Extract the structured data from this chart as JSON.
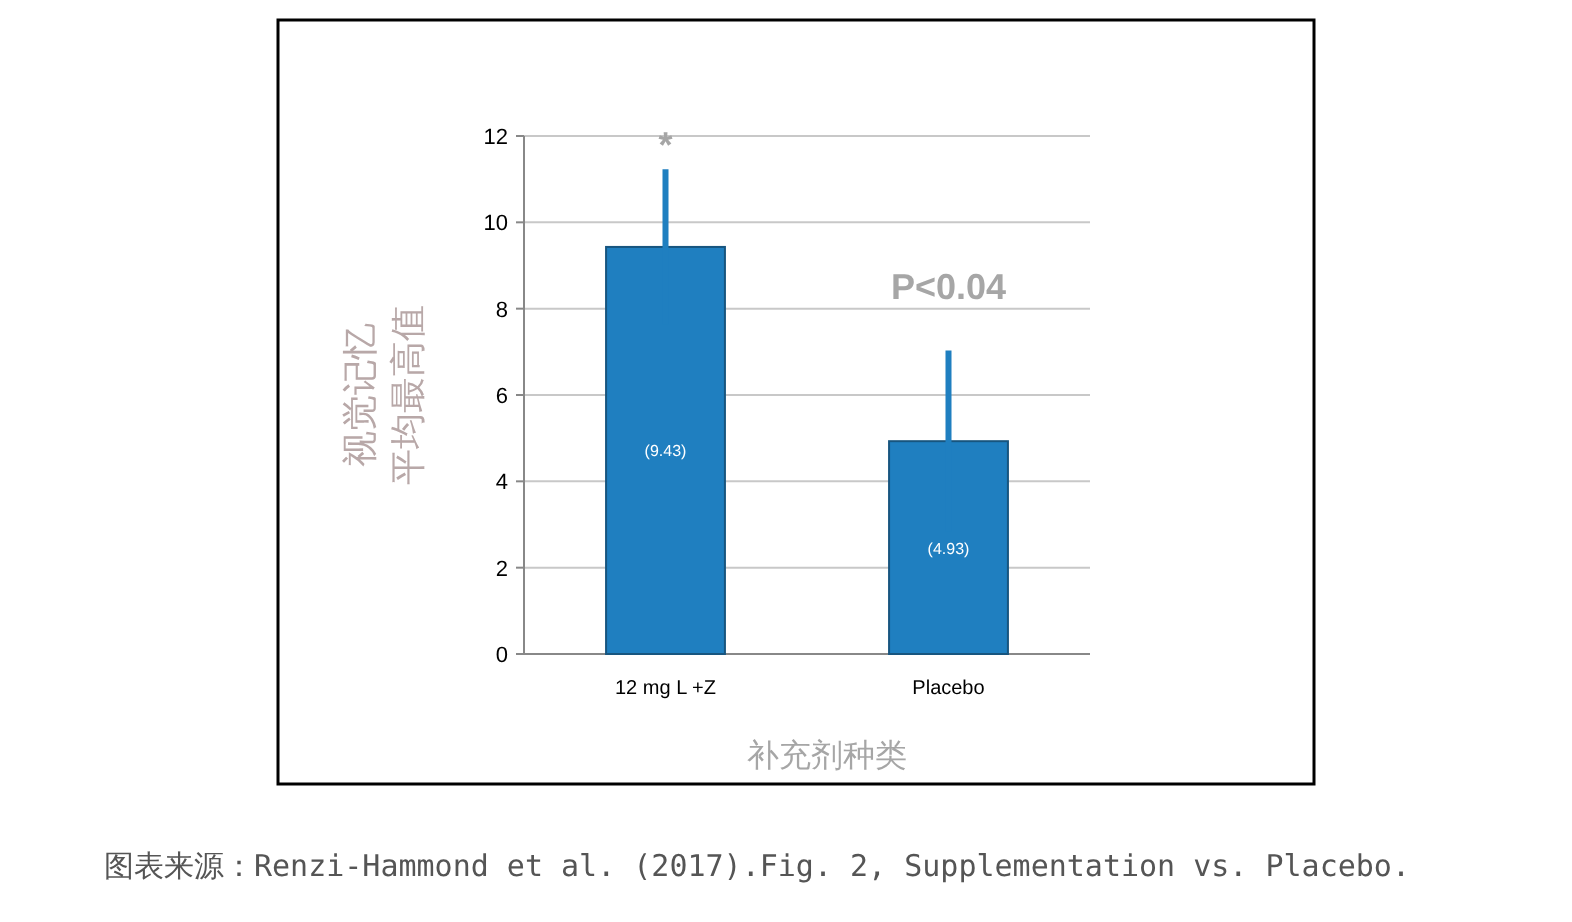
{
  "chart_data": {
    "type": "bar",
    "xlabel": "补充剂种类",
    "ylabel": "视觉记忆平均最高值",
    "categories": [
      "12 mg L +Z",
      "Placebo"
    ],
    "values": [
      9.43,
      4.93
    ],
    "color": "#1f7fc0",
    "errors": [
      1.8,
      2.1
    ],
    "value_labels": [
      "(9.43)",
      "(4.93)"
    ],
    "ylim": [
      0,
      12
    ],
    "yticks": [
      0,
      2,
      4,
      6,
      8,
      10,
      12
    ],
    "grid": "y",
    "annotations": [
      "*",
      "P<0.04",
      "图表来源：Renzi-Hammond et al. (2017).Fig. 2, Supplementation vs. Placebo."
    ]
  }
}
